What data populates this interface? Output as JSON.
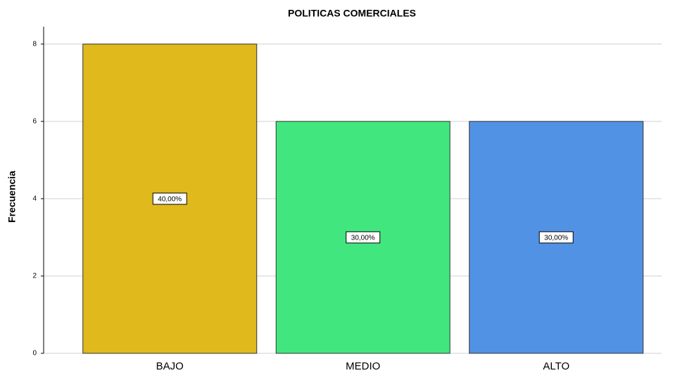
{
  "chart_data": {
    "type": "bar",
    "title": "POLITICAS COMERCIALES",
    "y_label": "Frecuencia",
    "categories": [
      "BAJO",
      "MEDIO",
      "ALTO"
    ],
    "values": [
      8,
      6,
      6
    ],
    "data_labels": [
      "40,00%",
      "30,00%",
      "30,00%"
    ],
    "colors": [
      "#e0b91c",
      "#41e77e",
      "#5292e4"
    ],
    "ylim": [
      0,
      8.45
    ],
    "yticks": [
      0,
      2,
      4,
      6,
      8
    ],
    "grid": true
  }
}
